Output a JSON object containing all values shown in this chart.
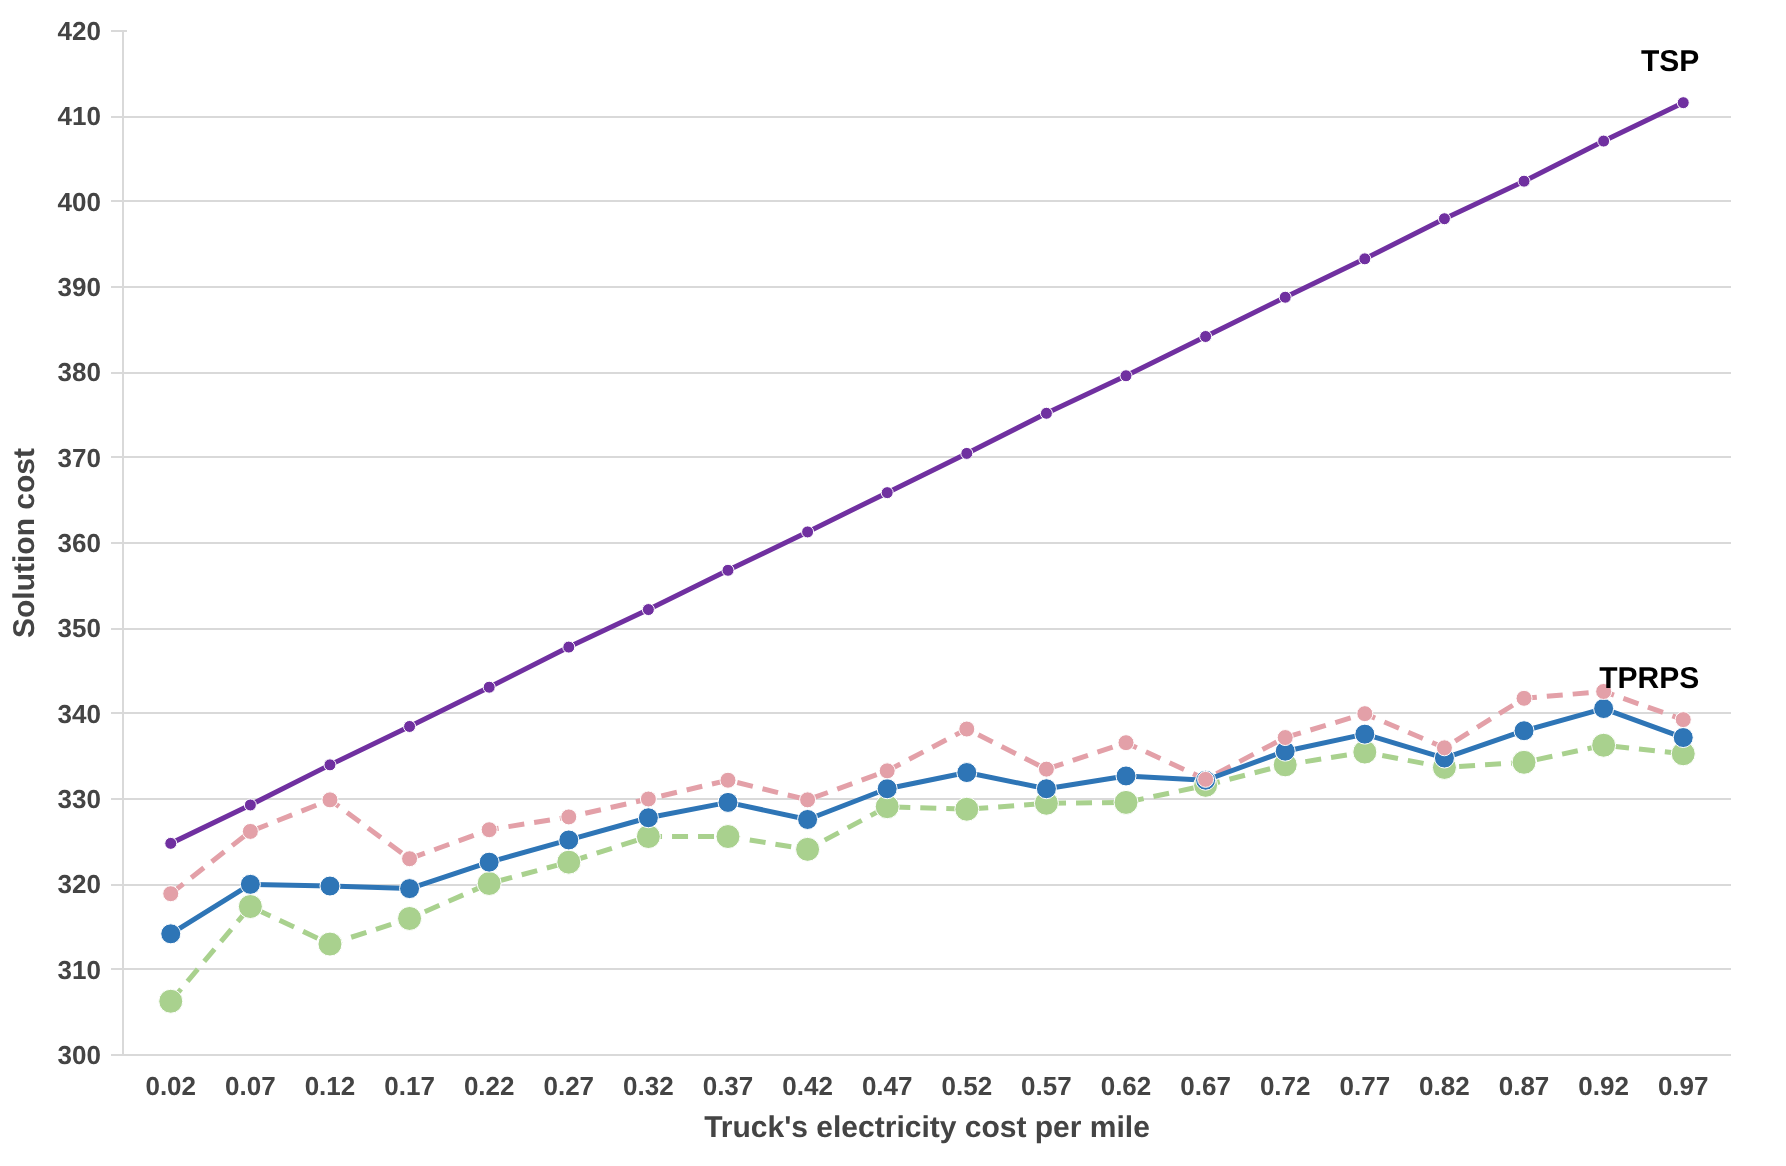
{
  "chart_data": {
    "type": "line",
    "xlabel": "Truck's electricity cost per mile",
    "ylabel": "Solution cost",
    "categories": [
      "0.02",
      "0.07",
      "0.12",
      "0.17",
      "0.22",
      "0.27",
      "0.32",
      "0.37",
      "0.42",
      "0.47",
      "0.52",
      "0.57",
      "0.62",
      "0.67",
      "0.72",
      "0.77",
      "0.82",
      "0.87",
      "0.92",
      "0.97"
    ],
    "series": [
      {
        "name": "TSP",
        "color": "#7030a0",
        "line_style": "solid",
        "values": [
          324.8,
          329.3,
          334,
          338.5,
          343.1,
          347.8,
          352.2,
          356.8,
          361.3,
          365.9,
          370.5,
          375.2,
          379.6,
          384.2,
          388.8,
          393.3,
          398,
          402.4,
          407.1,
          411.6
        ]
      },
      {
        "name": "TPRPS",
        "color": "#e3a0a8",
        "line_style": "dashed",
        "values": [
          318.9,
          326.2,
          329.9,
          323,
          326.4,
          327.9,
          330,
          332.2,
          329.9,
          333.3,
          338.2,
          333.5,
          336.6,
          332.3,
          337.2,
          340,
          336,
          341.8,
          342.6,
          339.3
        ]
      },
      {
        "color": "#2e75b6",
        "line_style": "solid",
        "values": [
          314.2,
          320,
          319.8,
          319.5,
          322.6,
          325.2,
          327.8,
          329.6,
          327.6,
          331.2,
          333.1,
          331.2,
          332.7,
          332.2,
          335.6,
          337.6,
          334.8,
          338,
          340.6,
          337.2
        ]
      },
      {
        "color": "#a9d18e",
        "line_style": "dashed",
        "values": [
          306.3,
          317.4,
          313,
          316,
          320.1,
          322.6,
          325.6,
          325.6,
          324.1,
          329.1,
          328.8,
          329.5,
          329.6,
          331.6,
          334,
          335.5,
          333.7,
          334.3,
          336.3,
          335.3
        ]
      }
    ],
    "ylim": [
      300,
      420
    ],
    "yticks": [
      300,
      310,
      320,
      330,
      340,
      350,
      360,
      370,
      380,
      390,
      400,
      410,
      420
    ],
    "grid": "y",
    "marker": "circle"
  }
}
